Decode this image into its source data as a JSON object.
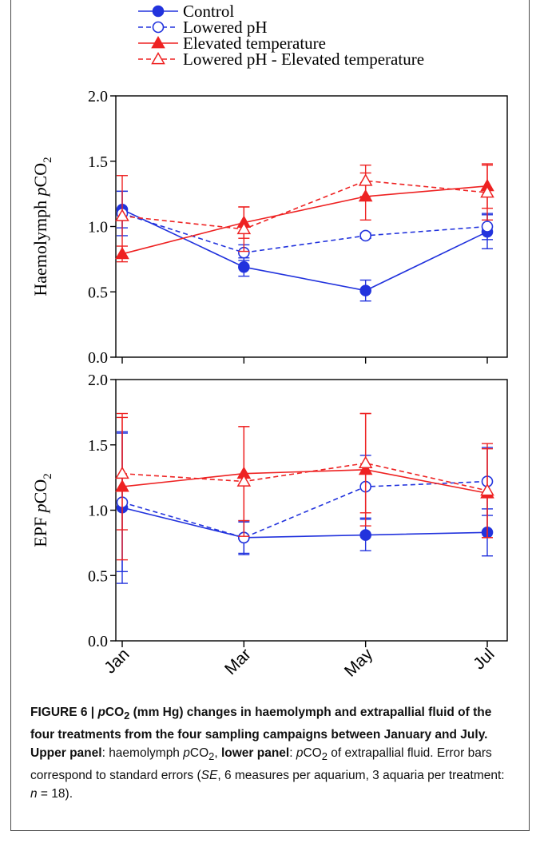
{
  "chart_data": [
    {
      "type": "line",
      "panel": "upper",
      "ylabel": "Haemolymph pCO2",
      "ylim": [
        0.0,
        2.0
      ],
      "yticks": [
        "0.0",
        "0.5",
        "1.0",
        "1.5",
        "2.0"
      ],
      "categories": [
        "Jan",
        "Mar",
        "May",
        "Jul"
      ],
      "series": [
        {
          "name": "Control",
          "color": "#2233dd",
          "values": [
            1.13,
            0.69,
            0.51,
            0.96
          ],
          "errors": [
            0.14,
            0.07,
            0.08,
            0.13
          ]
        },
        {
          "name": "Lowered pH",
          "color": "#2233dd",
          "values": [
            1.1,
            0.8,
            0.93,
            1.0
          ],
          "errors": [
            0.17,
            0.06,
            0.02,
            0.1
          ]
        },
        {
          "name": "Elevated temperature",
          "color": "#ee2222",
          "values": [
            0.79,
            1.03,
            1.23,
            1.31
          ],
          "errors": [
            0.06,
            0.12,
            0.18,
            0.17
          ]
        },
        {
          "name": "Lowered pH - Elevated temperature",
          "color": "#ee2222",
          "values": [
            1.08,
            0.98,
            1.35,
            1.26
          ],
          "errors": [
            0.31,
            0.17,
            0.12,
            0.21
          ]
        }
      ]
    },
    {
      "type": "line",
      "panel": "lower",
      "ylabel": "EPF pCO2",
      "ylim": [
        0.0,
        2.0
      ],
      "yticks": [
        "0.0",
        "0.5",
        "1.0",
        "1.5",
        "2.0"
      ],
      "categories": [
        "Jan",
        "Mar",
        "May",
        "Jul"
      ],
      "series": [
        {
          "name": "Control",
          "color": "#2233dd",
          "values": [
            1.02,
            0.79,
            0.81,
            0.83
          ],
          "errors": [
            0.58,
            0.12,
            0.12,
            0.18
          ]
        },
        {
          "name": "Lowered pH",
          "color": "#2233dd",
          "values": [
            1.06,
            0.79,
            1.18,
            1.22
          ],
          "errors": [
            0.53,
            0.13,
            0.24,
            0.26
          ]
        },
        {
          "name": "Elevated temperature",
          "color": "#ee2222",
          "values": [
            1.18,
            1.28,
            1.31,
            1.13
          ],
          "errors": [
            0.56,
            0.36,
            0.43,
            0.34
          ]
        },
        {
          "name": "Lowered pH - Elevated temperature",
          "color": "#ee2222",
          "values": [
            1.28,
            1.22,
            1.36,
            1.15
          ],
          "errors": [
            0.43,
            0.42,
            0.38,
            0.36
          ]
        }
      ]
    }
  ],
  "legend": {
    "items": [
      "Control",
      "Lowered pH",
      "Elevated temperature",
      "Lowered pH - Elevated temperature"
    ]
  },
  "caption": {
    "figure_label": "FIGURE 6 | ",
    "title_p": "p",
    "title_co": "CO",
    "title_sub": "2",
    "title_rest": " (mm Hg) changes in haemolymph and extrapallial fluid of the four treatments from the four sampling campaigns between January and July.",
    "upper_label": "Upper panel",
    "upper_text_1": ": haemolymph ",
    "upper_p": "p",
    "upper_co": "CO",
    "upper_sub": "2",
    "upper_text_2": ", ",
    "lower_label": "lower panel",
    "lower_text_1": ": ",
    "lower_p": "p",
    "lower_co": "CO",
    "lower_sub": "2",
    "lower_text_2": " of extrapallial fluid. Error bars correspond to standard errors (",
    "se": "SE",
    "se_text": ", 6 measures per aquarium, 3 aquaria per treatment: ",
    "n": "n",
    "n_text": " = 18)."
  }
}
